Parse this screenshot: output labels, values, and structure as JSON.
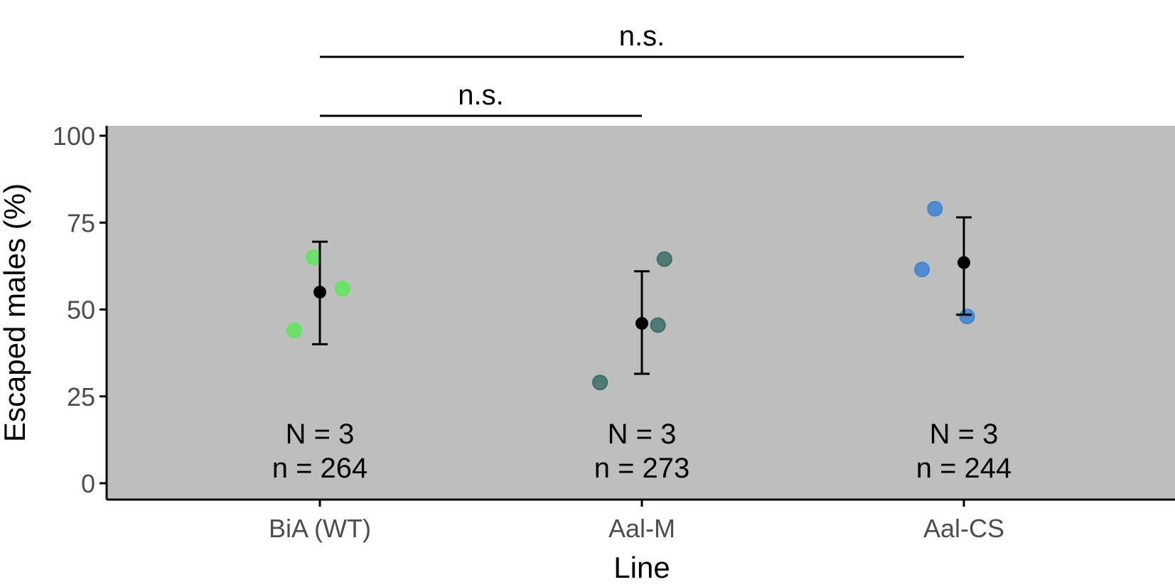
{
  "chart_data": {
    "type": "scatter",
    "title": "",
    "xlabel": "Line",
    "ylabel": "Escaped males (%)",
    "ylim": [
      0,
      100
    ],
    "yticks": [
      "0",
      "25",
      "50",
      "75",
      "100"
    ],
    "categories": [
      "BiA (WT)",
      "Aal-M",
      "Aal-CS"
    ],
    "background_color": "#bebebe",
    "groups": [
      {
        "category": "BiA (WT)",
        "color": "#5ee65a",
        "points": [
          {
            "x_offset": -0.08,
            "y": 44
          },
          {
            "x_offset": -0.02,
            "y": 65
          },
          {
            "x_offset": 0.07,
            "y": 56
          }
        ],
        "mean": 55,
        "error_low": 40,
        "error_high": 69.5,
        "N_label": "N = 3",
        "n_label": "n = 264"
      },
      {
        "category": "Aal-M",
        "color": "#3c6e6a",
        "points": [
          {
            "x_offset": -0.13,
            "y": 29
          },
          {
            "x_offset": 0.05,
            "y": 45.5
          },
          {
            "x_offset": 0.07,
            "y": 64.5
          }
        ],
        "mean": 46,
        "error_low": 31.5,
        "error_high": 61,
        "N_label": "N = 3",
        "n_label": "n = 273"
      },
      {
        "category": "Aal-CS",
        "color": "#3d85d4",
        "points": [
          {
            "x_offset": -0.13,
            "y": 61.5
          },
          {
            "x_offset": -0.09,
            "y": 79
          },
          {
            "x_offset": 0.01,
            "y": 48
          }
        ],
        "mean": 63.5,
        "error_low": 48.5,
        "error_high": 76.5,
        "N_label": "N = 3",
        "n_label": "n = 244"
      }
    ],
    "comparisons": [
      {
        "from": "BiA (WT)",
        "to": "Aal-M",
        "label": "n.s.",
        "level": 1
      },
      {
        "from": "BiA (WT)",
        "to": "Aal-CS",
        "label": "n.s.",
        "level": 2
      }
    ]
  }
}
